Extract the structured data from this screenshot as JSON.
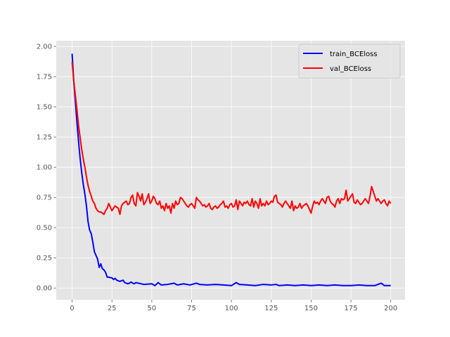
{
  "chart_data": {
    "type": "line",
    "title": "",
    "xlabel": "",
    "ylabel": "",
    "xlim": [
      -9.95,
      208.95
    ],
    "ylim": [
      -0.0975,
      2.0475
    ],
    "x_ticks": [
      0,
      25,
      50,
      75,
      100,
      125,
      150,
      175,
      200
    ],
    "x_tick_labels": [
      "0",
      "25",
      "50",
      "75",
      "100",
      "125",
      "150",
      "175",
      "200"
    ],
    "y_ticks": [
      0.0,
      0.25,
      0.5,
      0.75,
      1.0,
      1.25,
      1.5,
      1.75,
      2.0
    ],
    "y_tick_labels": [
      "0.00",
      "0.25",
      "0.50",
      "0.75",
      "1.00",
      "1.25",
      "1.50",
      "1.75",
      "2.00"
    ],
    "grid": true,
    "legend_position": "top-right",
    "colors": {
      "plot_bg": "#e5e5e5",
      "grid": "#ffffff",
      "tick": "#555555"
    },
    "series": [
      {
        "name": "train_BCEloss",
        "color": "#0000ff",
        "points": [
          [
            0,
            1.94
          ],
          [
            1,
            1.72
          ],
          [
            2,
            1.55
          ],
          [
            3,
            1.38
          ],
          [
            4,
            1.22
          ],
          [
            5,
            1.08
          ],
          [
            6,
            0.96
          ],
          [
            7,
            0.86
          ],
          [
            8,
            0.78
          ],
          [
            9,
            0.68
          ],
          [
            10,
            0.55
          ],
          [
            11,
            0.48
          ],
          [
            12,
            0.45
          ],
          [
            13,
            0.38
          ],
          [
            14,
            0.3
          ],
          [
            15,
            0.27
          ],
          [
            16,
            0.24
          ],
          [
            17,
            0.17
          ],
          [
            18,
            0.2
          ],
          [
            19,
            0.16
          ],
          [
            20,
            0.15
          ],
          [
            21,
            0.13
          ],
          [
            22,
            0.09
          ],
          [
            23,
            0.09
          ],
          [
            24,
            0.085
          ],
          [
            25,
            0.085
          ],
          [
            26,
            0.07
          ],
          [
            27,
            0.08
          ],
          [
            28,
            0.065
          ],
          [
            29,
            0.06
          ],
          [
            30,
            0.055
          ],
          [
            31,
            0.06
          ],
          [
            32,
            0.065
          ],
          [
            33,
            0.045
          ],
          [
            34,
            0.04
          ],
          [
            35,
            0.035
          ],
          [
            36,
            0.04
          ],
          [
            37,
            0.05
          ],
          [
            38,
            0.04
          ],
          [
            39,
            0.035
          ],
          [
            40,
            0.045
          ],
          [
            45,
            0.03
          ],
          [
            50,
            0.035
          ],
          [
            52,
            0.02
          ],
          [
            54,
            0.045
          ],
          [
            56,
            0.025
          ],
          [
            60,
            0.03
          ],
          [
            64,
            0.04
          ],
          [
            66,
            0.025
          ],
          [
            70,
            0.035
          ],
          [
            74,
            0.025
          ],
          [
            78,
            0.04
          ],
          [
            80,
            0.03
          ],
          [
            85,
            0.025
          ],
          [
            90,
            0.03
          ],
          [
            95,
            0.025
          ],
          [
            100,
            0.02
          ],
          [
            103,
            0.045
          ],
          [
            105,
            0.03
          ],
          [
            110,
            0.025
          ],
          [
            115,
            0.02
          ],
          [
            120,
            0.03
          ],
          [
            125,
            0.025
          ],
          [
            128,
            0.03
          ],
          [
            130,
            0.02
          ],
          [
            135,
            0.025
          ],
          [
            140,
            0.02
          ],
          [
            145,
            0.025
          ],
          [
            150,
            0.02
          ],
          [
            155,
            0.025
          ],
          [
            160,
            0.02
          ],
          [
            165,
            0.025
          ],
          [
            170,
            0.02
          ],
          [
            175,
            0.02
          ],
          [
            180,
            0.025
          ],
          [
            185,
            0.02
          ],
          [
            190,
            0.02
          ],
          [
            194,
            0.04
          ],
          [
            196,
            0.02
          ],
          [
            200,
            0.02
          ]
        ]
      },
      {
        "name": "val_BCEloss",
        "color": "#ff0000",
        "points": [
          [
            0,
            1.87
          ],
          [
            1,
            1.72
          ],
          [
            2,
            1.6
          ],
          [
            3,
            1.48
          ],
          [
            4,
            1.35
          ],
          [
            5,
            1.25
          ],
          [
            6,
            1.15
          ],
          [
            7,
            1.07
          ],
          [
            8,
            1.0
          ],
          [
            9,
            0.92
          ],
          [
            10,
            0.85
          ],
          [
            11,
            0.8
          ],
          [
            12,
            0.76
          ],
          [
            13,
            0.72
          ],
          [
            14,
            0.7
          ],
          [
            15,
            0.66
          ],
          [
            16,
            0.64
          ],
          [
            17,
            0.63
          ],
          [
            18,
            0.63
          ],
          [
            19,
            0.62
          ],
          [
            20,
            0.61
          ],
          [
            21,
            0.64
          ],
          [
            22,
            0.66
          ],
          [
            23,
            0.7
          ],
          [
            24,
            0.67
          ],
          [
            25,
            0.64
          ],
          [
            26,
            0.66
          ],
          [
            27,
            0.68
          ],
          [
            28,
            0.67
          ],
          [
            29,
            0.66
          ],
          [
            30,
            0.61
          ],
          [
            31,
            0.68
          ],
          [
            32,
            0.7
          ],
          [
            33,
            0.71
          ],
          [
            34,
            0.72
          ],
          [
            35,
            0.69
          ],
          [
            36,
            0.7
          ],
          [
            37,
            0.75
          ],
          [
            38,
            0.77
          ],
          [
            39,
            0.7
          ],
          [
            40,
            0.68
          ],
          [
            41,
            0.79
          ],
          [
            42,
            0.76
          ],
          [
            43,
            0.72
          ],
          [
            44,
            0.78
          ],
          [
            45,
            0.69
          ],
          [
            46,
            0.71
          ],
          [
            47,
            0.74
          ],
          [
            48,
            0.78
          ],
          [
            49,
            0.7
          ],
          [
            50,
            0.72
          ],
          [
            51,
            0.76
          ],
          [
            52,
            0.74
          ],
          [
            53,
            0.7
          ],
          [
            54,
            0.69
          ],
          [
            55,
            0.72
          ],
          [
            56,
            0.66
          ],
          [
            57,
            0.68
          ],
          [
            58,
            0.64
          ],
          [
            59,
            0.7
          ],
          [
            60,
            0.66
          ],
          [
            61,
            0.68
          ],
          [
            62,
            0.62
          ],
          [
            63,
            0.7
          ],
          [
            64,
            0.66
          ],
          [
            65,
            0.72
          ],
          [
            66,
            0.69
          ],
          [
            67,
            0.7
          ],
          [
            68,
            0.75
          ],
          [
            69,
            0.74
          ],
          [
            70,
            0.72
          ],
          [
            71,
            0.7
          ],
          [
            72,
            0.68
          ],
          [
            73,
            0.67
          ],
          [
            74,
            0.69
          ],
          [
            75,
            0.7
          ],
          [
            76,
            0.68
          ],
          [
            77,
            0.66
          ],
          [
            78,
            0.75
          ],
          [
            79,
            0.73
          ],
          [
            80,
            0.72
          ],
          [
            81,
            0.7
          ],
          [
            82,
            0.68
          ],
          [
            83,
            0.69
          ],
          [
            84,
            0.67
          ],
          [
            85,
            0.68
          ],
          [
            86,
            0.7
          ],
          [
            87,
            0.66
          ],
          [
            88,
            0.65
          ],
          [
            89,
            0.67
          ],
          [
            90,
            0.68
          ],
          [
            91,
            0.66
          ],
          [
            92,
            0.67
          ],
          [
            93,
            0.69
          ],
          [
            94,
            0.7
          ],
          [
            95,
            0.72
          ],
          [
            96,
            0.67
          ],
          [
            97,
            0.68
          ],
          [
            98,
            0.66
          ],
          [
            99,
            0.69
          ],
          [
            100,
            0.7
          ],
          [
            101,
            0.67
          ],
          [
            102,
            0.68
          ],
          [
            103,
            0.73
          ],
          [
            104,
            0.65
          ],
          [
            105,
            0.72
          ],
          [
            106,
            0.7
          ],
          [
            107,
            0.68
          ],
          [
            108,
            0.71
          ],
          [
            109,
            0.7
          ],
          [
            110,
            0.72
          ],
          [
            111,
            0.69
          ],
          [
            112,
            0.68
          ],
          [
            113,
            0.74
          ],
          [
            114,
            0.67
          ],
          [
            115,
            0.72
          ],
          [
            116,
            0.7
          ],
          [
            117,
            0.66
          ],
          [
            118,
            0.74
          ],
          [
            119,
            0.68
          ],
          [
            120,
            0.7
          ],
          [
            121,
            0.68
          ],
          [
            122,
            0.72
          ],
          [
            123,
            0.69
          ],
          [
            124,
            0.7
          ],
          [
            125,
            0.72
          ],
          [
            126,
            0.71
          ],
          [
            127,
            0.76
          ],
          [
            128,
            0.77
          ],
          [
            129,
            0.71
          ],
          [
            130,
            0.7
          ],
          [
            131,
            0.69
          ],
          [
            132,
            0.67
          ],
          [
            133,
            0.7
          ],
          [
            134,
            0.72
          ],
          [
            135,
            0.7
          ],
          [
            136,
            0.68
          ],
          [
            137,
            0.66
          ],
          [
            138,
            0.72
          ],
          [
            139,
            0.64
          ],
          [
            140,
            0.68
          ],
          [
            141,
            0.66
          ],
          [
            142,
            0.67
          ],
          [
            143,
            0.7
          ],
          [
            144,
            0.66
          ],
          [
            145,
            0.68
          ],
          [
            146,
            0.69
          ],
          [
            147,
            0.7
          ],
          [
            148,
            0.68
          ],
          [
            149,
            0.65
          ],
          [
            150,
            0.62
          ],
          [
            151,
            0.68
          ],
          [
            152,
            0.72
          ],
          [
            153,
            0.7
          ],
          [
            154,
            0.71
          ],
          [
            155,
            0.69
          ],
          [
            156,
            0.72
          ],
          [
            157,
            0.74
          ],
          [
            158,
            0.72
          ],
          [
            159,
            0.7
          ],
          [
            160,
            0.75
          ],
          [
            161,
            0.76
          ],
          [
            162,
            0.72
          ],
          [
            163,
            0.7
          ],
          [
            164,
            0.69
          ],
          [
            165,
            0.67
          ],
          [
            166,
            0.72
          ],
          [
            167,
            0.74
          ],
          [
            168,
            0.7
          ],
          [
            169,
            0.74
          ],
          [
            170,
            0.73
          ],
          [
            171,
            0.74
          ],
          [
            172,
            0.81
          ],
          [
            173,
            0.72
          ],
          [
            174,
            0.74
          ],
          [
            175,
            0.76
          ],
          [
            176,
            0.78
          ],
          [
            177,
            0.71
          ],
          [
            178,
            0.7
          ],
          [
            179,
            0.73
          ],
          [
            180,
            0.71
          ],
          [
            181,
            0.69
          ],
          [
            182,
            0.7
          ],
          [
            183,
            0.72
          ],
          [
            184,
            0.74
          ],
          [
            185,
            0.72
          ],
          [
            186,
            0.7
          ],
          [
            187,
            0.76
          ],
          [
            188,
            0.84
          ],
          [
            189,
            0.8
          ],
          [
            190,
            0.76
          ],
          [
            191,
            0.72
          ],
          [
            192,
            0.74
          ],
          [
            193,
            0.72
          ],
          [
            194,
            0.7
          ],
          [
            195,
            0.72
          ],
          [
            196,
            0.73
          ],
          [
            197,
            0.7
          ],
          [
            198,
            0.68
          ],
          [
            199,
            0.72
          ],
          [
            200,
            0.7
          ]
        ]
      }
    ]
  }
}
